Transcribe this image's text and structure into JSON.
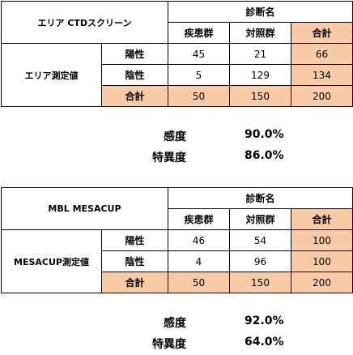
{
  "tables": [
    {
      "title": "エリア CTDスクリーン",
      "diagnosis_header": "診断名",
      "columns": [
        "疾患群",
        "対照群",
        "合計"
      ],
      "row_group_label": "エリア測定値",
      "rows": [
        {
          "label": "陽性",
          "values": [
            "45",
            "21",
            "66"
          ]
        },
        {
          "label": "陰性",
          "values": [
            "5",
            "129",
            "134"
          ]
        },
        {
          "label": "合計",
          "values": [
            "50",
            "150",
            "200"
          ]
        }
      ],
      "stats": [
        {
          "label": "感度",
          "value": "90.0%"
        },
        {
          "label": "特異度",
          "value": "86.0%"
        }
      ]
    },
    {
      "title": "MBL MESACUP",
      "diagnosis_header": "診断名",
      "columns": [
        "疾患群",
        "対照群",
        "合計"
      ],
      "row_group_label": "MESACUP測定値",
      "rows": [
        {
          "label": "陽性",
          "values": [
            "46",
            "54",
            "100"
          ]
        },
        {
          "label": "陰性",
          "values": [
            "4",
            "96",
            "100"
          ]
        },
        {
          "label": "合計",
          "values": [
            "50",
            "150",
            "200"
          ]
        }
      ],
      "stats": [
        {
          "label": "感度",
          "value": "92.0%"
        },
        {
          "label": "特異度",
          "value": "64.0%"
        }
      ]
    }
  ],
  "colors": {
    "highlight": "#f8cba7",
    "border": "#000000"
  }
}
